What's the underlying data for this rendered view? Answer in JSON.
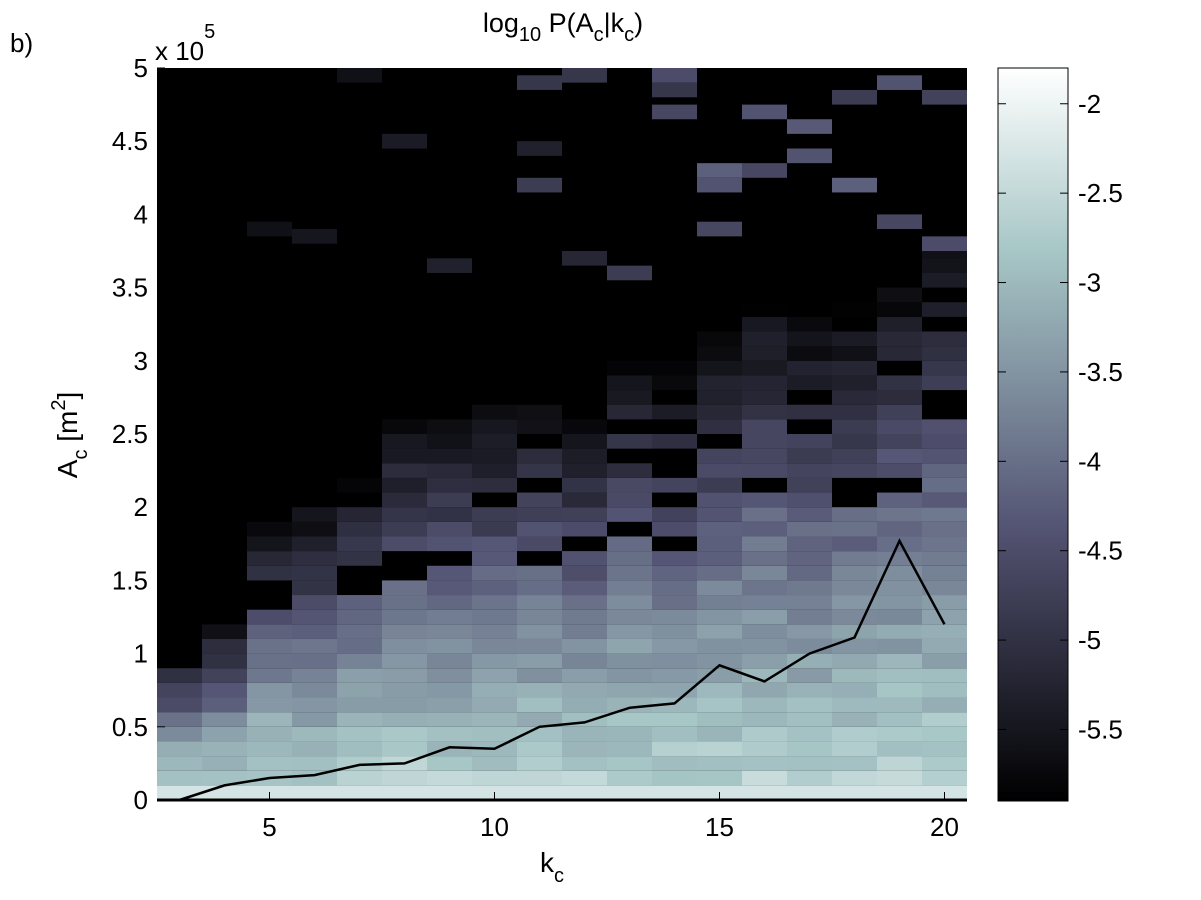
{
  "panel_label": "b)",
  "title": {
    "base": "log",
    "sub": "10",
    "rest1": " P(A",
    "sub2": "c",
    "rest2": "|k",
    "sub3": "c",
    "rest3": ")"
  },
  "xlabel": {
    "base": "k",
    "sub": "c"
  },
  "ylabel": {
    "base": "A",
    "sub": "c",
    "rest": " [m",
    "sup": "2",
    "end": "]"
  },
  "y_multiplier": {
    "text": "x 10",
    "exp": "5"
  },
  "colors": {
    "line": "#000000",
    "cmap_low": "#000000",
    "cmap_high": "#ffffff"
  },
  "chart_data": {
    "type": "heatmap",
    "title": "log10 P(Ac|kc)",
    "xlabel": "kc",
    "ylabel": "Ac [m2]",
    "xlim": [
      2.5,
      20.5
    ],
    "ylim": [
      0,
      500000
    ],
    "x_categories": [
      3,
      4,
      5,
      6,
      7,
      8,
      9,
      10,
      11,
      12,
      13,
      14,
      15,
      16,
      17,
      18,
      19,
      20
    ],
    "y_bin_width": 10000,
    "x_ticks": [
      5,
      10,
      15,
      20
    ],
    "x_tick_labels": [
      "5",
      "10",
      "15",
      "20"
    ],
    "y_ticks": [
      0,
      50000,
      100000,
      150000,
      200000,
      250000,
      300000,
      350000,
      400000,
      450000,
      500000
    ],
    "y_tick_labels": [
      "0",
      "0.5",
      "1",
      "1.5",
      "2",
      "2.5",
      "3",
      "3.5",
      "4",
      "4.5",
      "5"
    ],
    "colorbar": {
      "range": [
        -5.9,
        -1.8
      ],
      "ticks": [
        -2,
        -2.5,
        -3,
        -3.5,
        -4,
        -4.5,
        -5,
        -5.5
      ],
      "tick_labels": [
        "-2",
        "-2.5",
        "-3",
        "-3.5",
        "-4",
        "-4.5",
        "-5",
        "-5.5"
      ],
      "colormap": "bone"
    },
    "column_profiles": [
      {
        "k": 3,
        "body_top": 100000
      },
      {
        "k": 4,
        "body_top": 120000
      },
      {
        "k": 5,
        "body_top": 190000
      },
      {
        "k": 6,
        "body_top": 200000
      },
      {
        "k": 7,
        "body_top": 220000
      },
      {
        "k": 8,
        "body_top": 260000
      },
      {
        "k": 9,
        "body_top": 260000
      },
      {
        "k": 10,
        "body_top": 270000
      },
      {
        "k": 11,
        "body_top": 280000
      },
      {
        "k": 12,
        "body_top": 260000
      },
      {
        "k": 13,
        "body_top": 300000
      },
      {
        "k": 14,
        "body_top": 300000
      },
      {
        "k": 15,
        "body_top": 320000
      },
      {
        "k": 16,
        "body_top": 350000
      },
      {
        "k": 17,
        "body_top": 330000
      },
      {
        "k": 18,
        "body_top": 340000
      },
      {
        "k": 19,
        "body_top": 360000
      },
      {
        "k": 20,
        "body_top": 380000
      }
    ],
    "outlier_bins": [
      {
        "k": 7,
        "a": 495000,
        "v": -5.6
      },
      {
        "k": 11,
        "a": 490000,
        "v": -4.9
      },
      {
        "k": 11,
        "a": 445000,
        "v": -5.3
      },
      {
        "k": 11,
        "a": 420000,
        "v": -4.8
      },
      {
        "k": 12,
        "a": 495000,
        "v": -4.9
      },
      {
        "k": 12,
        "a": 370000,
        "v": -5.2
      },
      {
        "k": 13,
        "a": 360000,
        "v": -4.8
      },
      {
        "k": 14,
        "a": 495000,
        "v": -4.5
      },
      {
        "k": 14,
        "a": 485000,
        "v": -4.9
      },
      {
        "k": 14,
        "a": 470000,
        "v": -4.6
      },
      {
        "k": 15,
        "a": 430000,
        "v": -4.2
      },
      {
        "k": 15,
        "a": 420000,
        "v": -4.4
      },
      {
        "k": 15,
        "a": 390000,
        "v": -4.6
      },
      {
        "k": 16,
        "a": 470000,
        "v": -4.4
      },
      {
        "k": 16,
        "a": 430000,
        "v": -4.6
      },
      {
        "k": 17,
        "a": 460000,
        "v": -4.3
      },
      {
        "k": 17,
        "a": 440000,
        "v": -4.4
      },
      {
        "k": 18,
        "a": 480000,
        "v": -4.8
      },
      {
        "k": 18,
        "a": 420000,
        "v": -4.2
      },
      {
        "k": 19,
        "a": 490000,
        "v": -4.4
      },
      {
        "k": 19,
        "a": 395000,
        "v": -4.6
      },
      {
        "k": 20,
        "a": 480000,
        "v": -4.7
      },
      {
        "k": 20,
        "a": 380000,
        "v": -4.5
      },
      {
        "k": 8,
        "a": 450000,
        "v": -5.4
      },
      {
        "k": 9,
        "a": 365000,
        "v": -5.3
      },
      {
        "k": 6,
        "a": 385000,
        "v": -5.5
      },
      {
        "k": 5,
        "a": 390000,
        "v": -5.6
      }
    ],
    "series": [
      {
        "type": "line",
        "x": [
          3,
          4,
          5,
          6,
          7,
          8,
          9,
          10,
          11,
          12,
          13,
          14,
          15,
          16,
          17,
          18,
          19,
          20
        ],
        "y": [
          0,
          10000,
          15000,
          17000,
          24000,
          25000,
          36000,
          35000,
          50000,
          53000,
          63000,
          66000,
          92000,
          81000,
          100000,
          111000,
          177000,
          120000
        ]
      }
    ]
  }
}
